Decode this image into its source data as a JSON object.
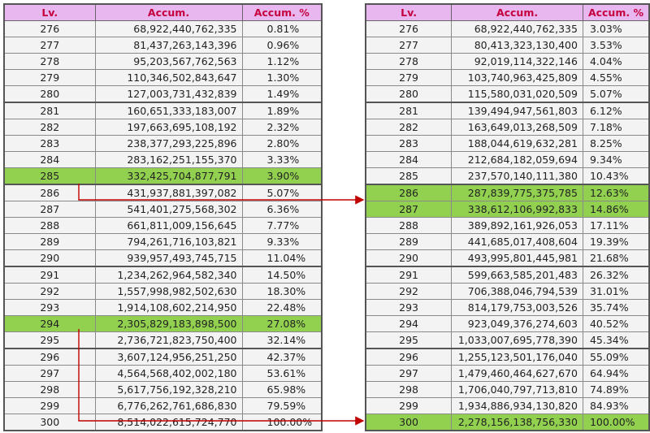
{
  "left_table": {
    "headers": [
      "Lv.",
      "Accum.",
      "Accum. %"
    ],
    "rows": [
      [
        "276",
        "68,922,440,762,335",
        "0.81%"
      ],
      [
        "277",
        "81,437,263,143,396",
        "0.96%"
      ],
      [
        "278",
        "95,203,567,762,563",
        "1.12%"
      ],
      [
        "279",
        "110,346,502,843,647",
        "1.30%"
      ],
      [
        "280",
        "127,003,731,432,839",
        "1.49%"
      ],
      [
        "281",
        "160,651,333,183,007",
        "1.89%"
      ],
      [
        "282",
        "197,663,695,108,192",
        "2.32%"
      ],
      [
        "283",
        "238,377,293,225,896",
        "2.80%"
      ],
      [
        "284",
        "283,162,251,155,370",
        "3.33%"
      ],
      [
        "285",
        "332,425,704,877,791",
        "3.90%"
      ],
      [
        "286",
        "431,937,881,397,082",
        "5.07%"
      ],
      [
        "287",
        "541,401,275,568,302",
        "6.36%"
      ],
      [
        "288",
        "661,811,009,156,645",
        "7.77%"
      ],
      [
        "289",
        "794,261,716,103,821",
        "9.33%"
      ],
      [
        "290",
        "939,957,493,745,715",
        "11.04%"
      ],
      [
        "291",
        "1,234,262,964,582,340",
        "14.50%"
      ],
      [
        "292",
        "1,557,998,982,502,630",
        "18.30%"
      ],
      [
        "293",
        "1,914,108,602,214,950",
        "22.48%"
      ],
      [
        "294",
        "2,305,829,183,898,500",
        "27.08%"
      ],
      [
        "295",
        "2,736,721,823,750,400",
        "32.14%"
      ],
      [
        "296",
        "3,607,124,956,251,250",
        "42.37%"
      ],
      [
        "297",
        "4,564,568,402,002,180",
        "53.61%"
      ],
      [
        "298",
        "5,617,756,192,328,210",
        "65.98%"
      ],
      [
        "299",
        "6,776,262,761,686,830",
        "79.59%"
      ],
      [
        "300",
        "8,514,022,615,724,770",
        "100.00%"
      ]
    ],
    "highlighted_levels": [
      "285",
      "294"
    ]
  },
  "right_table": {
    "headers": [
      "Lv.",
      "Accum.",
      "Accum. %"
    ],
    "rows": [
      [
        "276",
        "68,922,440,762,335",
        "3.03%"
      ],
      [
        "277",
        "80,413,323,130,400",
        "3.53%"
      ],
      [
        "278",
        "92,019,114,322,146",
        "4.04%"
      ],
      [
        "279",
        "103,740,963,425,809",
        "4.55%"
      ],
      [
        "280",
        "115,580,031,020,509",
        "5.07%"
      ],
      [
        "281",
        "139,494,947,561,803",
        "6.12%"
      ],
      [
        "282",
        "163,649,013,268,509",
        "7.18%"
      ],
      [
        "283",
        "188,044,619,632,281",
        "8.25%"
      ],
      [
        "284",
        "212,684,182,059,694",
        "9.34%"
      ],
      [
        "285",
        "237,570,140,111,380",
        "10.43%"
      ],
      [
        "286",
        "287,839,775,375,785",
        "12.63%"
      ],
      [
        "287",
        "338,612,106,992,833",
        "14.86%"
      ],
      [
        "288",
        "389,892,161,926,053",
        "17.11%"
      ],
      [
        "289",
        "441,685,017,408,604",
        "19.39%"
      ],
      [
        "290",
        "493,995,801,445,981",
        "21.68%"
      ],
      [
        "291",
        "599,663,585,201,483",
        "26.32%"
      ],
      [
        "292",
        "706,388,046,794,539",
        "31.01%"
      ],
      [
        "293",
        "814,179,753,003,526",
        "35.74%"
      ],
      [
        "294",
        "923,049,376,274,603",
        "40.52%"
      ],
      [
        "295",
        "1,033,007,695,778,390",
        "45.34%"
      ],
      [
        "296",
        "1,255,123,501,176,040",
        "55.09%"
      ],
      [
        "297",
        "1,479,460,464,627,670",
        "64.94%"
      ],
      [
        "298",
        "1,706,040,797,713,810",
        "74.89%"
      ],
      [
        "299",
        "1,934,886,934,130,820",
        "84.93%"
      ],
      [
        "300",
        "2,278,156,138,756,330",
        "100.00%"
      ]
    ],
    "highlighted_levels": [
      "286",
      "287",
      "300"
    ]
  },
  "colors": {
    "header_bg": "#e8b7ef",
    "header_text": "#c4003f",
    "highlight_bg": "#92d050",
    "cell_bg": "#f3f3f3",
    "arrow": "#c00000"
  },
  "group_start_levels": [
    "281",
    "286",
    "291",
    "296"
  ]
}
